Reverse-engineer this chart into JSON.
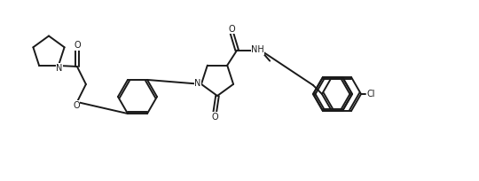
{
  "bg_color": "#ffffff",
  "line_color": "#1a1a1a",
  "line_width": 1.4,
  "figsize": [
    5.4,
    2.04
  ],
  "dpi": 100,
  "xlim": [
    0,
    54
  ],
  "ylim": [
    0,
    20.4
  ]
}
